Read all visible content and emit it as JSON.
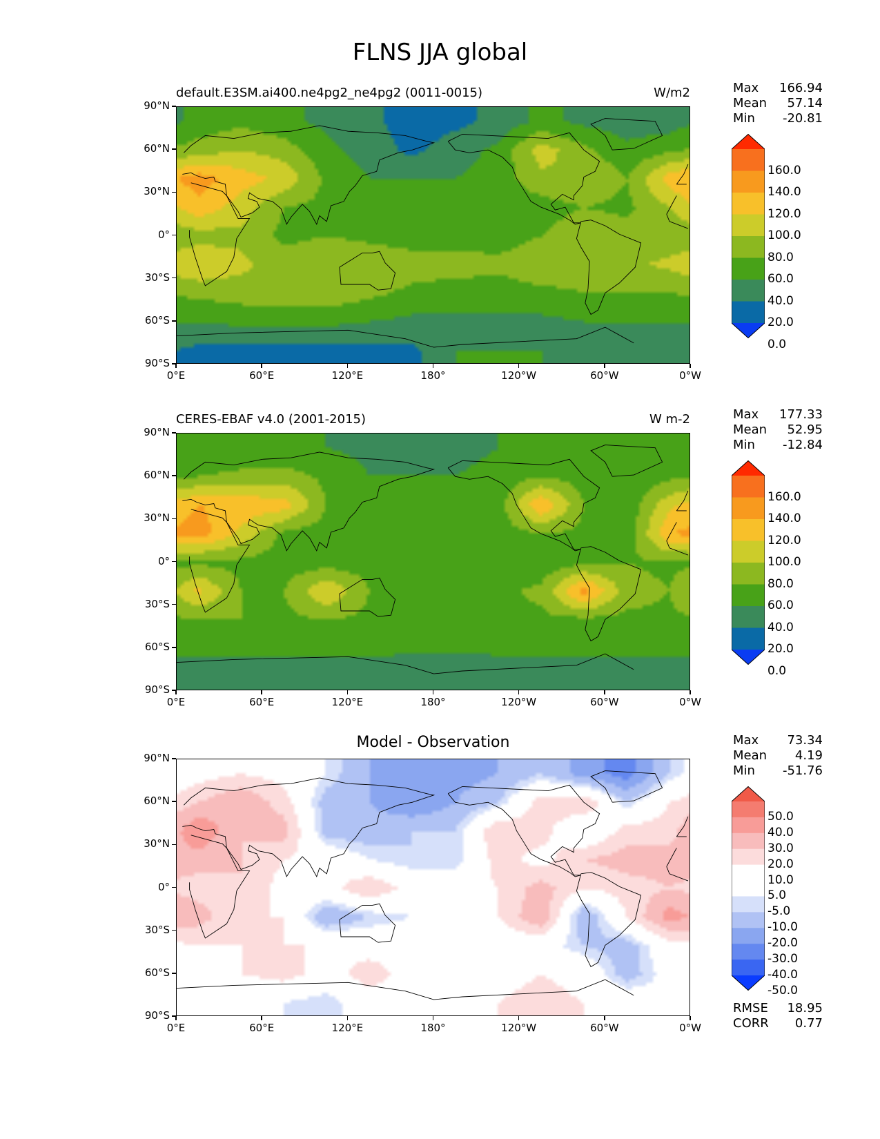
{
  "figure_title": "FLNS JJA global",
  "lat_labels": [
    "90°N",
    "60°N",
    "30°N",
    "0°",
    "30°S",
    "60°S",
    "90°S"
  ],
  "lon_labels": [
    "0°E",
    "60°E",
    "120°E",
    "180°",
    "120°W",
    "60°W",
    "0°W"
  ],
  "panels": [
    {
      "left_title": "default.E3SM.ai400.ne4pg2_ne4pg2 (0011-0015)",
      "right_title": "W/m2",
      "center_title": "",
      "stats": [
        {
          "label": "Max",
          "value": "166.94"
        },
        {
          "label": "Mean",
          "value": "57.14"
        },
        {
          "label": "Min",
          "value": "-20.81"
        }
      ],
      "colorbar_labels": [
        "160.0",
        "140.0",
        "120.0",
        "100.0",
        "80.0",
        "60.0",
        "40.0",
        "20.0",
        "0.0"
      ]
    },
    {
      "left_title": "CERES-EBAF v4.0 (2001-2015)",
      "right_title": "W m-2",
      "center_title": "",
      "stats": [
        {
          "label": "Max",
          "value": "177.33"
        },
        {
          "label": "Mean",
          "value": "52.95"
        },
        {
          "label": "Min",
          "value": "-12.84"
        }
      ],
      "colorbar_labels": [
        "160.0",
        "140.0",
        "120.0",
        "100.0",
        "80.0",
        "60.0",
        "40.0",
        "20.0",
        "0.0"
      ]
    },
    {
      "left_title": "",
      "right_title": "",
      "center_title": "Model - Observation",
      "stats": [
        {
          "label": "Max",
          "value": "73.34"
        },
        {
          "label": "Mean",
          "value": "4.19"
        },
        {
          "label": "Min",
          "value": "-51.76"
        }
      ],
      "colorbar_labels": [
        "50.0",
        "40.0",
        "30.0",
        "20.0",
        "10.0",
        "5.0",
        "-5.0",
        "-10.0",
        "-20.0",
        "-30.0",
        "-40.0",
        "-50.0"
      ],
      "metrics": [
        {
          "label": "RMSE",
          "value": "18.95"
        },
        {
          "label": "CORR",
          "value": "0.77"
        }
      ]
    }
  ],
  "colors": {
    "seq": [
      "#0a3cf2",
      "#0a6aa6",
      "#3a8a5a",
      "#48a218",
      "#8cb820",
      "#cccc2a",
      "#f8c02a",
      "#f89a1e",
      "#f8701e",
      "#ff2a00"
    ],
    "diff": [
      "#0a3cff",
      "#3a66f2",
      "#6488f0",
      "#8aa6f0",
      "#b0c2f4",
      "#d6e0fa",
      "#ffffff",
      "#ffffff",
      "#fcdcdc",
      "#f8bcbc",
      "#f89c98",
      "#f47c70",
      "#f05a48",
      "#e83a24",
      "#ff2a00"
    ]
  },
  "chart_data": [
    {
      "type": "heatmap",
      "title": "default.E3SM.ai400.ne4pg2_ne4pg2 (0011-0015)",
      "units": "W/m2",
      "xlabel": "",
      "ylabel": "",
      "x_ticks": [
        "0°E",
        "60°E",
        "120°E",
        "180°",
        "120°W",
        "60°W",
        "0°W"
      ],
      "y_ticks": [
        "90°N",
        "60°N",
        "30°N",
        "0°",
        "30°S",
        "60°S",
        "90°S"
      ],
      "levels": [
        0,
        20,
        40,
        60,
        80,
        100,
        120,
        140,
        160
      ],
      "extend": "both",
      "max": 166.94,
      "mean": 57.14,
      "min": -20.81,
      "lat": [
        80,
        60,
        40,
        20,
        0,
        -20,
        -40,
        -60,
        -80
      ],
      "lon": [
        15,
        45,
        75,
        105,
        135,
        165,
        195,
        225,
        255,
        285,
        315,
        345
      ],
      "values": [
        [
          45,
          55,
          45,
          35,
          25,
          10,
          15,
          25,
          45,
          35,
          30,
          30
        ],
        [
          70,
          80,
          70,
          45,
          30,
          15,
          30,
          45,
          90,
          65,
          45,
          55
        ],
        [
          130,
          110,
          95,
          55,
          40,
          40,
          40,
          50,
          75,
          80,
          60,
          110
        ],
        [
          115,
          90,
          60,
          55,
          50,
          45,
          45,
          45,
          50,
          60,
          55,
          80
        ],
        [
          70,
          75,
          55,
          60,
          55,
          50,
          50,
          50,
          60,
          75,
          70,
          65
        ],
        [
          100,
          85,
          70,
          75,
          75,
          70,
          70,
          65,
          75,
          70,
          75,
          85
        ],
        [
          65,
          70,
          75,
          75,
          65,
          55,
          50,
          50,
          55,
          60,
          60,
          60
        ],
        [
          40,
          45,
          45,
          45,
          40,
          35,
          35,
          35,
          35,
          40,
          40,
          40
        ],
        [
          15,
          15,
          15,
          15,
          15,
          15,
          40,
          40,
          40,
          35,
          35,
          25
        ]
      ]
    },
    {
      "type": "heatmap",
      "title": "CERES-EBAF v4.0 (2001-2015)",
      "units": "W m-2",
      "xlabel": "",
      "ylabel": "",
      "x_ticks": [
        "0°E",
        "60°E",
        "120°E",
        "180°",
        "120°W",
        "60°W",
        "0°W"
      ],
      "y_ticks": [
        "90°N",
        "60°N",
        "30°N",
        "0°",
        "30°S",
        "60°S",
        "90°S"
      ],
      "levels": [
        0,
        20,
        40,
        60,
        80,
        100,
        120,
        140,
        160
      ],
      "extend": "both",
      "max": 177.33,
      "mean": 52.95,
      "min": -12.84,
      "lat": [
        80,
        60,
        40,
        20,
        0,
        -20,
        -40,
        -60,
        -80
      ],
      "lon": [
        15,
        45,
        75,
        105,
        135,
        165,
        195,
        225,
        255,
        285,
        315,
        345
      ],
      "values": [
        [
          40,
          45,
          40,
          40,
          35,
          35,
          35,
          40,
          45,
          40,
          40,
          40
        ],
        [
          60,
          65,
          70,
          55,
          40,
          40,
          40,
          45,
          60,
          50,
          45,
          55
        ],
        [
          120,
          115,
          110,
          60,
          45,
          45,
          45,
          50,
          120,
          60,
          45,
          95
        ],
        [
          130,
          95,
          55,
          50,
          55,
          55,
          55,
          50,
          60,
          55,
          45,
          120
        ],
        [
          55,
          55,
          50,
          50,
          50,
          50,
          50,
          50,
          45,
          55,
          60,
          55
        ],
        [
          105,
          60,
          60,
          100,
          60,
          55,
          55,
          55,
          65,
          130,
          70,
          60
        ],
        [
          60,
          60,
          55,
          60,
          55,
          55,
          55,
          55,
          55,
          55,
          55,
          55
        ],
        [
          45,
          45,
          45,
          45,
          45,
          45,
          45,
          45,
          45,
          45,
          45,
          45
        ],
        [
          25,
          25,
          25,
          25,
          30,
          20,
          20,
          25,
          25,
          30,
          30,
          25
        ]
      ]
    },
    {
      "type": "heatmap",
      "title": "Model - Observation",
      "units": "",
      "xlabel": "",
      "ylabel": "",
      "x_ticks": [
        "0°E",
        "60°E",
        "120°E",
        "180°",
        "120°W",
        "60°W",
        "0°W"
      ],
      "y_ticks": [
        "90°N",
        "60°N",
        "30°N",
        "0°",
        "30°S",
        "60°S",
        "90°S"
      ],
      "levels": [
        -50,
        -40,
        -30,
        -20,
        -10,
        -5,
        5,
        10,
        20,
        30,
        40,
        50
      ],
      "extend": "both",
      "max": 73.34,
      "mean": 4.19,
      "min": -51.76,
      "rmse": 18.95,
      "corr": 0.77,
      "lat": [
        80,
        60,
        40,
        20,
        0,
        -20,
        -40,
        -60,
        -80
      ],
      "lon": [
        15,
        45,
        75,
        105,
        135,
        165,
        195,
        225,
        255,
        285,
        315,
        345
      ],
      "values": [
        [
          5,
          10,
          5,
          -5,
          -20,
          -30,
          -25,
          -20,
          -10,
          -25,
          -35,
          -10
        ],
        [
          20,
          30,
          15,
          -15,
          -20,
          -30,
          -20,
          -10,
          15,
          20,
          -10,
          10
        ],
        [
          40,
          20,
          25,
          -15,
          -15,
          -10,
          -10,
          20,
          15,
          -5,
          15,
          15
        ],
        [
          25,
          20,
          10,
          5,
          -5,
          -10,
          -10,
          15,
          5,
          20,
          25,
          25
        ],
        [
          15,
          20,
          5,
          5,
          20,
          5,
          5,
          10,
          25,
          10,
          15,
          20
        ],
        [
          25,
          10,
          10,
          -20,
          -10,
          -5,
          5,
          10,
          30,
          -20,
          10,
          35
        ],
        [
          10,
          10,
          10,
          10,
          5,
          5,
          0,
          0,
          0,
          -10,
          -15,
          5
        ],
        [
          5,
          10,
          15,
          5,
          15,
          5,
          0,
          5,
          10,
          5,
          -15,
          0
        ],
        [
          -5,
          -5,
          -5,
          -10,
          5,
          0,
          5,
          10,
          15,
          10,
          5,
          -5
        ]
      ]
    }
  ]
}
